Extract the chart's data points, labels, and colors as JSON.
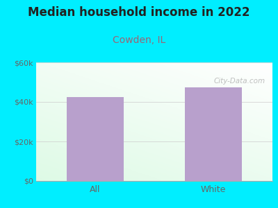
{
  "title": "Median household income in 2022",
  "subtitle": "Cowden, IL",
  "categories": [
    "All",
    "White"
  ],
  "values": [
    42500,
    47500
  ],
  "bar_color": "#b8a0cc",
  "title_fontsize": 12,
  "subtitle_fontsize": 10,
  "subtitle_color": "#996677",
  "tick_color": "#666666",
  "ylim": [
    0,
    60000
  ],
  "yticks": [
    0,
    20000,
    40000,
    60000
  ],
  "ytick_labels": [
    "$0",
    "$20k",
    "$40k",
    "$60k"
  ],
  "bg_outer": "#00eeff",
  "watermark": "City-Data.com",
  "bar_width": 0.48,
  "title_color": "#222222"
}
